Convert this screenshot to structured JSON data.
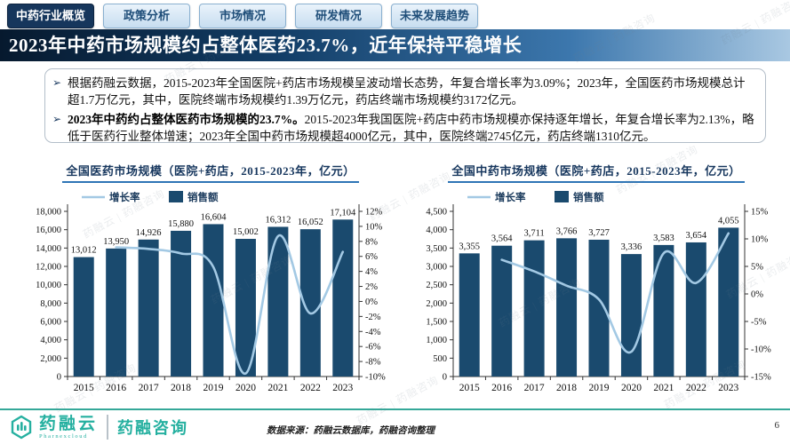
{
  "tabs": [
    {
      "label": "中药行业概览",
      "active": true
    },
    {
      "label": "政策分析",
      "active": false
    },
    {
      "label": "市场情况",
      "active": false
    },
    {
      "label": "研发情况",
      "active": false
    },
    {
      "label": "未来发展趋势",
      "active": false
    }
  ],
  "headline": "2023年中药市场规模约占整体医药23.7%，近年保持平稳增长",
  "bullets": {
    "marker": "➢",
    "item1": "根据药融云数据，2015-2023年全国医院+药店市场规模呈波动增长态势，年复合增长率为3.09%；2023年，全国医药市场规模总计超1.7万亿元，其中，医院终端市场规模约1.39万亿元，药店终端市场规模约3172亿元。",
    "item2_bold": "2023年中药约占整体医药市场规模的23.7%。",
    "item2_rest": "2015-2023年我国医院+药店中药市场规模亦保持逐年增长，年复合增长率为2.13%，略低于医药行业整体增速；2023年全国中药市场规模超4000亿元，其中，医院终端2745亿元，药店终端1310亿元。"
  },
  "chart_data": [
    {
      "type": "bar",
      "title": "全国医药市场规模（医院+药店，2015-2023年，亿元）",
      "categories": [
        "2015",
        "2016",
        "2017",
        "2018",
        "2019",
        "2020",
        "2021",
        "2022",
        "2023"
      ],
      "series": [
        {
          "name": "销售额",
          "type": "bar",
          "axis": "left",
          "values": [
            13012,
            13950,
            14926,
            15880,
            16604,
            15002,
            16312,
            16052,
            17104
          ]
        },
        {
          "name": "增长率",
          "type": "line",
          "axis": "right",
          "unit": "%",
          "values": [
            null,
            7.2,
            7.0,
            6.4,
            4.6,
            -9.6,
            8.7,
            -1.6,
            6.6
          ]
        }
      ],
      "left_axis": {
        "min": 0,
        "max": 18000,
        "step": 2000
      },
      "right_axis": {
        "min": -10,
        "max": 12,
        "step": 2,
        "suffix": "%"
      },
      "legend_position": "top-left",
      "grid": false
    },
    {
      "type": "bar",
      "title": "全国中药市场规模（医院+药店，2015-2023年，亿元）",
      "categories": [
        "2015",
        "2016",
        "2017",
        "2018",
        "2019",
        "2020",
        "2021",
        "2022",
        "2023"
      ],
      "series": [
        {
          "name": "销售额",
          "type": "bar",
          "axis": "left",
          "values": [
            3355,
            3564,
            3711,
            3766,
            3727,
            3336,
            3583,
            3654,
            4055
          ]
        },
        {
          "name": "增长率",
          "type": "line",
          "axis": "right",
          "unit": "%",
          "values": [
            null,
            6.2,
            4.1,
            1.5,
            -1.0,
            -10.5,
            7.4,
            2.0,
            11.0
          ]
        }
      ],
      "left_axis": {
        "min": 0,
        "max": 4500,
        "step": 500
      },
      "right_axis": {
        "min": -15,
        "max": 15,
        "step": 5,
        "suffix": "%"
      },
      "legend_position": "top-left",
      "grid": false
    }
  ],
  "footer": {
    "brand1": "药融云",
    "brand1_sub": "Pharnexcloud",
    "brand2": "药融咨询",
    "source": "数据来源：药融云数据库，药融咨询整理",
    "page": "6"
  },
  "watermark": {
    "text": "药融云 | 药融咨询"
  },
  "colors": {
    "accent_navy": "#17375e",
    "bar": "#1a4a6e",
    "line": "#a3c9e4",
    "teal": "#2fae9e"
  }
}
